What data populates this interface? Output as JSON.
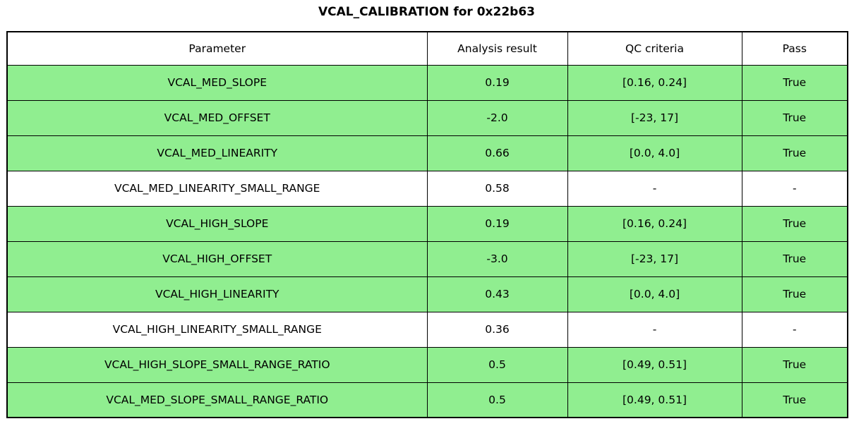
{
  "chart_data": {
    "type": "table",
    "title": "VCAL_CALIBRATION for 0x22b63",
    "columns": [
      "Parameter",
      "Analysis result",
      "QC criteria",
      "Pass"
    ],
    "rows": [
      {
        "parameter": "VCAL_MED_SLOPE",
        "result": "0.19",
        "criteria": "[0.16, 0.24]",
        "pass": "True",
        "highlight": true
      },
      {
        "parameter": "VCAL_MED_OFFSET",
        "result": "-2.0",
        "criteria": "[-23, 17]",
        "pass": "True",
        "highlight": true
      },
      {
        "parameter": "VCAL_MED_LINEARITY",
        "result": "0.66",
        "criteria": "[0.0, 4.0]",
        "pass": "True",
        "highlight": true
      },
      {
        "parameter": "VCAL_MED_LINEARITY_SMALL_RANGE",
        "result": "0.58",
        "criteria": "-",
        "pass": "-",
        "highlight": false
      },
      {
        "parameter": "VCAL_HIGH_SLOPE",
        "result": "0.19",
        "criteria": "[0.16, 0.24]",
        "pass": "True",
        "highlight": true
      },
      {
        "parameter": "VCAL_HIGH_OFFSET",
        "result": "-3.0",
        "criteria": "[-23, 17]",
        "pass": "True",
        "highlight": true
      },
      {
        "parameter": "VCAL_HIGH_LINEARITY",
        "result": "0.43",
        "criteria": "[0.0, 4.0]",
        "pass": "True",
        "highlight": true
      },
      {
        "parameter": "VCAL_HIGH_LINEARITY_SMALL_RANGE",
        "result": "0.36",
        "criteria": "-",
        "pass": "-",
        "highlight": false
      },
      {
        "parameter": "VCAL_HIGH_SLOPE_SMALL_RANGE_RATIO",
        "result": "0.5",
        "criteria": "[0.49, 0.51]",
        "pass": "True",
        "highlight": true
      },
      {
        "parameter": "VCAL_MED_SLOPE_SMALL_RANGE_RATIO",
        "result": "0.5",
        "criteria": "[0.49, 0.51]",
        "pass": "True",
        "highlight": true
      }
    ],
    "layout_hints": {
      "highlight_color": "#90EE90",
      "border_color": "#000000",
      "background_color": "#FFFFFF",
      "legend_position": "none",
      "grid": "full-cell-borders"
    }
  }
}
